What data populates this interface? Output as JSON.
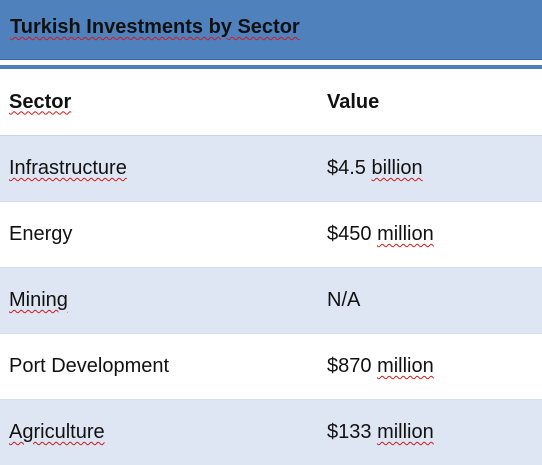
{
  "title": "Turkish Investments by Sector",
  "table": {
    "headers": [
      "Sector",
      "Value"
    ],
    "rows": [
      {
        "sector": "Infrastructure",
        "value_amount": "$4.5",
        "value_unit": "billion"
      },
      {
        "sector": "Energy",
        "value_amount": "$450",
        "value_unit": "million"
      },
      {
        "sector": "Mining",
        "value_amount": "N/A",
        "value_unit": ""
      },
      {
        "sector": "Port Development",
        "value_amount": "$870",
        "value_unit": "million"
      },
      {
        "sector": "Agriculture",
        "value_amount": "$133",
        "value_unit": "million"
      }
    ]
  },
  "colors": {
    "title_bar": "#4f81bd",
    "band_row": "#dde6f2",
    "spellcheck_underline": "#d21a1a"
  }
}
